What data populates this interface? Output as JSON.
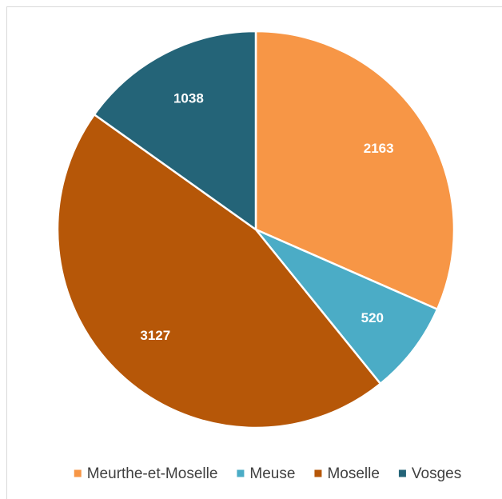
{
  "chart_data": {
    "type": "pie",
    "categories": [
      "Meurthe-et-Moselle",
      "Meuse",
      "Moselle",
      "Vosges"
    ],
    "values": [
      2163,
      520,
      3127,
      1038
    ],
    "colors": [
      "#f79646",
      "#4bacc6",
      "#b65708",
      "#246478"
    ],
    "legend": "bottom"
  }
}
